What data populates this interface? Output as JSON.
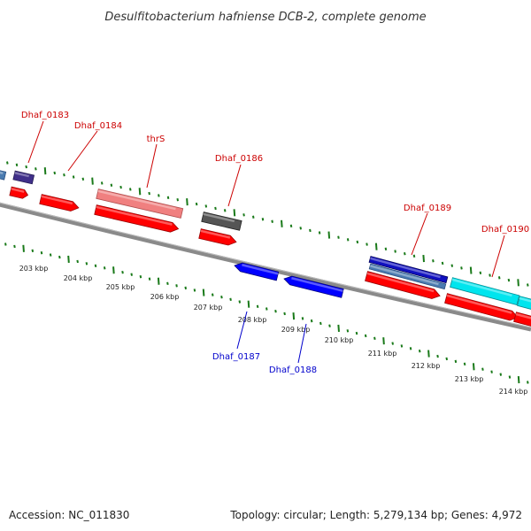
{
  "title": "Desulfitobacterium hafniense DCB-2, complete genome",
  "accession": "Accession: NC_011830",
  "topology": "Topology: circular; Length: 5,279,134 bp; Genes: 4,972",
  "colors": {
    "backbone": "#808080",
    "tick": "#1a7a1a",
    "label_forward": "#cc0000",
    "label_reverse": "#0000cc",
    "gene_red": "#ff0000",
    "gene_pink": "#f08080",
    "gene_gray": "#555555",
    "gene_blue": "#0000ff",
    "gene_navy": "#1010c0",
    "gene_steel": "#4a7bb0",
    "gene_purple": "#40308a",
    "gene_cyan": "#00e5ee"
  },
  "scale_labels": [
    "203 kbp",
    "204 kbp",
    "205 kbp",
    "206 kbp",
    "207 kbp",
    "208 kbp",
    "209 kbp",
    "210 kbp",
    "211 kbp",
    "212 kbp",
    "213 kbp",
    "214 kbp"
  ],
  "gene_labels": [
    {
      "text": "Dhaf_0183",
      "strand": "forward"
    },
    {
      "text": "Dhaf_0184",
      "strand": "forward"
    },
    {
      "text": "thrS",
      "strand": "forward"
    },
    {
      "text": "Dhaf_0186",
      "strand": "forward"
    },
    {
      "text": "Dhaf_0189",
      "strand": "forward"
    },
    {
      "text": "Dhaf_0190",
      "strand": "forward"
    },
    {
      "text": "Dhaf_0187",
      "strand": "reverse"
    },
    {
      "text": "Dhaf_0188",
      "strand": "reverse"
    }
  ]
}
